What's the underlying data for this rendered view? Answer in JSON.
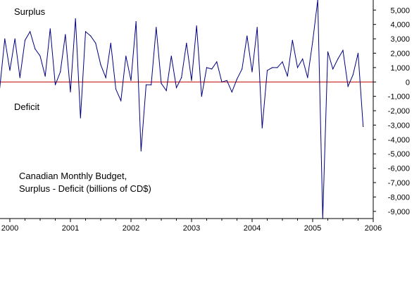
{
  "chart_data": {
    "type": "line",
    "title": "Canadian Monthly Budget,",
    "subtitle": "Surplus - Deficit (billions of CD$)",
    "xlabel": "",
    "ylabel": "",
    "surplus_label": "Surplus",
    "deficit_label": "Deficit",
    "x_tick_labels": [
      "2000",
      "2001",
      "2002",
      "2003",
      "2004",
      "2005",
      "2006"
    ],
    "y_tick_labels": [
      "5,000",
      "4,000",
      "3,000",
      "2,000",
      "1,000",
      "0",
      "-1,000",
      "-2,000",
      "-3,000",
      "-4,000",
      "-5,000",
      "-6,000",
      "-7,000",
      "-8,000",
      "-9,000"
    ],
    "ylim": [
      -9500,
      5700
    ],
    "xlim": [
      "2000-01",
      "2006-01"
    ],
    "grid": false,
    "zero_line": true,
    "colors": {
      "series": "#00007f",
      "zero_line": "#c00000",
      "axis": "#000000"
    },
    "series": [
      {
        "x": [
          "1999-11",
          "1999-12",
          "2000-01",
          "2000-02",
          "2000-03",
          "2000-04",
          "2000-05",
          "2000-06",
          "2000-07",
          "2000-08",
          "2000-09",
          "2000-10",
          "2000-11",
          "2000-12",
          "2001-01",
          "2001-02",
          "2001-03",
          "2001-04",
          "2001-05",
          "2001-06",
          "2001-07",
          "2001-08",
          "2001-09",
          "2001-10",
          "2001-11",
          "2001-12",
          "2002-01",
          "2002-02",
          "2002-03",
          "2002-04",
          "2002-05",
          "2002-06",
          "2002-07",
          "2002-08",
          "2002-09",
          "2002-10",
          "2002-11",
          "2002-12",
          "2003-01",
          "2003-02",
          "2003-03",
          "2003-04",
          "2003-05",
          "2003-06",
          "2003-07",
          "2003-08",
          "2003-09",
          "2003-10",
          "2003-11",
          "2003-12",
          "2004-01",
          "2004-02",
          "2004-03",
          "2004-04",
          "2004-05",
          "2004-06",
          "2004-07",
          "2004-08",
          "2004-09",
          "2004-10",
          "2004-11",
          "2004-12",
          "2005-01",
          "2005-02",
          "2005-03",
          "2005-04",
          "2005-05",
          "2005-06",
          "2005-07",
          "2005-08",
          "2005-09",
          "2005-10",
          "2005-11"
        ],
        "values": [
          -400,
          3000,
          800,
          3000,
          300,
          2900,
          3500,
          2300,
          1800,
          400,
          3700,
          -200,
          700,
          3300,
          -700,
          4400,
          -2500,
          3500,
          3200,
          2700,
          1200,
          300,
          2700,
          -500,
          -1300,
          1800,
          100,
          4200,
          -4800,
          -200,
          -200,
          3800,
          -100,
          -600,
          1800,
          -400,
          300,
          2700,
          100,
          3900,
          -1000,
          1000,
          900,
          1400,
          0,
          100,
          -700,
          200,
          900,
          3200,
          700,
          3800,
          -3200,
          800,
          1000,
          1000,
          1400,
          400,
          2900,
          1000,
          1600,
          300,
          2800,
          5700,
          -9500,
          2100,
          900,
          1600,
          2200,
          -300,
          500,
          2000,
          -3100
        ]
      }
    ]
  }
}
